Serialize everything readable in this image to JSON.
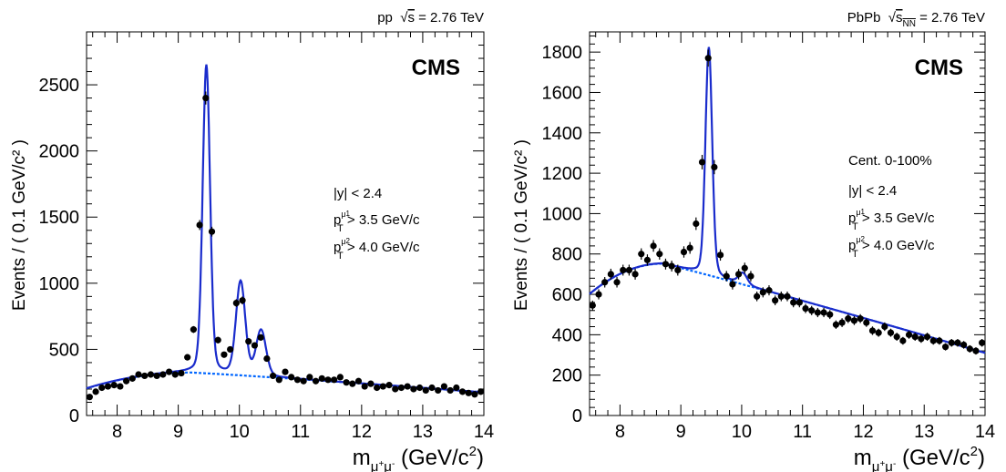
{
  "chart_data": [
    {
      "type": "scatter",
      "header": "pp  √s = 2.76 TeV",
      "logo": "CMS",
      "ylabel": "Events / ( 0.1 GeV/c² )",
      "xlabel": "mμ⁺μ⁻ (GeV/c²)",
      "xlim": [
        7.5,
        14
      ],
      "ylim": [
        0,
        2900
      ],
      "x_ticks": [
        8,
        9,
        10,
        11,
        12,
        13,
        14
      ],
      "y_ticks": [
        0,
        500,
        1000,
        1500,
        2000,
        2500
      ],
      "annotations": [
        "|y| < 2.4",
        "pμ1T > 3.5 GeV/c",
        "pμ2T > 4.0 GeV/c"
      ],
      "points": {
        "x": [
          7.55,
          7.65,
          7.75,
          7.85,
          7.95,
          8.05,
          8.15,
          8.25,
          8.35,
          8.45,
          8.55,
          8.65,
          8.75,
          8.85,
          8.95,
          9.05,
          9.15,
          9.25,
          9.35,
          9.45,
          9.55,
          9.65,
          9.75,
          9.85,
          9.95,
          10.05,
          10.15,
          10.25,
          10.35,
          10.45,
          10.55,
          10.65,
          10.75,
          10.85,
          10.95,
          11.05,
          11.15,
          11.25,
          11.35,
          11.45,
          11.55,
          11.65,
          11.75,
          11.85,
          11.95,
          12.05,
          12.15,
          12.25,
          12.35,
          12.45,
          12.55,
          12.65,
          12.75,
          12.85,
          12.95,
          13.05,
          13.15,
          13.25,
          13.35,
          13.45,
          13.55,
          13.65,
          13.75,
          13.85,
          13.95
        ],
        "y": [
          140,
          180,
          210,
          220,
          230,
          220,
          260,
          280,
          310,
          300,
          310,
          300,
          310,
          330,
          310,
          320,
          440,
          650,
          1440,
          2400,
          1390,
          570,
          460,
          500,
          850,
          870,
          560,
          530,
          590,
          430,
          300,
          270,
          330,
          290,
          270,
          260,
          290,
          260,
          280,
          270,
          270,
          290,
          250,
          240,
          260,
          220,
          240,
          210,
          220,
          230,
          200,
          210,
          220,
          200,
          210,
          190,
          210,
          190,
          220,
          190,
          210,
          180,
          170,
          160,
          180
        ],
        "err": [
          15,
          15,
          15,
          15,
          15,
          15,
          16,
          17,
          18,
          18,
          18,
          18,
          18,
          18,
          18,
          18,
          21,
          26,
          38,
          49,
          37,
          24,
          21,
          22,
          29,
          30,
          24,
          23,
          24,
          21,
          17,
          16,
          18,
          17,
          16,
          16,
          17,
          16,
          17,
          16,
          16,
          17,
          16,
          16,
          16,
          15,
          16,
          15,
          15,
          15,
          14,
          15,
          15,
          14,
          15,
          14,
          15,
          14,
          15,
          14,
          15,
          14,
          13,
          13,
          14
        ]
      },
      "fit": {
        "background": {
          "center": 9.2,
          "peak": 325,
          "curvature": 4.2,
          "slope": -6.5
        },
        "peaks": [
          {
            "mass": 9.46,
            "amplitude": 2330,
            "width": 0.06
          },
          {
            "mass": 10.02,
            "amplitude": 705,
            "width": 0.075
          },
          {
            "mass": 10.355,
            "amplitude": 345,
            "width": 0.08
          }
        ]
      }
    },
    {
      "type": "scatter",
      "header": "PbPb  √s_NN = 2.76 TeV",
      "logo": "CMS",
      "ylabel": "Events / ( 0.1 GeV/c² )",
      "xlabel": "mμ⁺μ⁻ (GeV/c²)",
      "xlim": [
        7.5,
        14
      ],
      "ylim": [
        0,
        1900
      ],
      "x_ticks": [
        8,
        9,
        10,
        11,
        12,
        13,
        14
      ],
      "y_ticks": [
        0,
        200,
        400,
        600,
        800,
        1000,
        1200,
        1400,
        1600,
        1800
      ],
      "annotations": [
        "Cent. 0-100%",
        "|y| < 2.4",
        "pμ1T > 3.5 GeV/c",
        "pμ2T > 4.0 GeV/c"
      ],
      "points": {
        "x": [
          7.55,
          7.65,
          7.75,
          7.85,
          7.95,
          8.05,
          8.15,
          8.25,
          8.35,
          8.45,
          8.55,
          8.65,
          8.75,
          8.85,
          8.95,
          9.05,
          9.15,
          9.25,
          9.35,
          9.45,
          9.55,
          9.65,
          9.75,
          9.85,
          9.95,
          10.05,
          10.15,
          10.25,
          10.35,
          10.45,
          10.55,
          10.65,
          10.75,
          10.85,
          10.95,
          11.05,
          11.15,
          11.25,
          11.35,
          11.45,
          11.55,
          11.65,
          11.75,
          11.85,
          11.95,
          12.05,
          12.15,
          12.25,
          12.35,
          12.45,
          12.55,
          12.65,
          12.75,
          12.85,
          12.95,
          13.05,
          13.15,
          13.25,
          13.35,
          13.45,
          13.55,
          13.65,
          13.75,
          13.85,
          13.95
        ],
        "y": [
          545,
          600,
          660,
          700,
          660,
          720,
          720,
          700,
          800,
          770,
          840,
          800,
          750,
          740,
          720,
          810,
          830,
          950,
          1255,
          1770,
          1230,
          795,
          690,
          650,
          700,
          730,
          690,
          590,
          610,
          620,
          570,
          590,
          590,
          560,
          560,
          530,
          520,
          510,
          510,
          500,
          450,
          460,
          480,
          470,
          480,
          460,
          420,
          410,
          440,
          410,
          390,
          370,
          400,
          390,
          380,
          390,
          370,
          370,
          340,
          360,
          360,
          350,
          330,
          320,
          360
        ],
        "err": [
          24,
          25,
          26,
          27,
          26,
          27,
          27,
          27,
          28,
          28,
          29,
          28,
          27,
          27,
          27,
          28,
          29,
          31,
          36,
          42,
          35,
          28,
          26,
          26,
          26,
          27,
          26,
          24,
          25,
          25,
          24,
          24,
          24,
          24,
          24,
          23,
          23,
          23,
          23,
          22,
          21,
          22,
          22,
          22,
          22,
          21,
          21,
          20,
          21,
          20,
          20,
          19,
          20,
          20,
          20,
          20,
          19,
          19,
          18,
          19,
          19,
          19,
          18,
          18,
          19
        ]
      },
      "fit": {
        "background": {
          "center": 8.7,
          "peak": 752,
          "curvature": 6.8,
          "slope": -13
        },
        "peaks": [
          {
            "mass": 9.46,
            "amplitude": 1130,
            "width": 0.055
          },
          {
            "mass": 10.02,
            "amplitude": 55,
            "width": 0.07
          }
        ]
      }
    }
  ]
}
